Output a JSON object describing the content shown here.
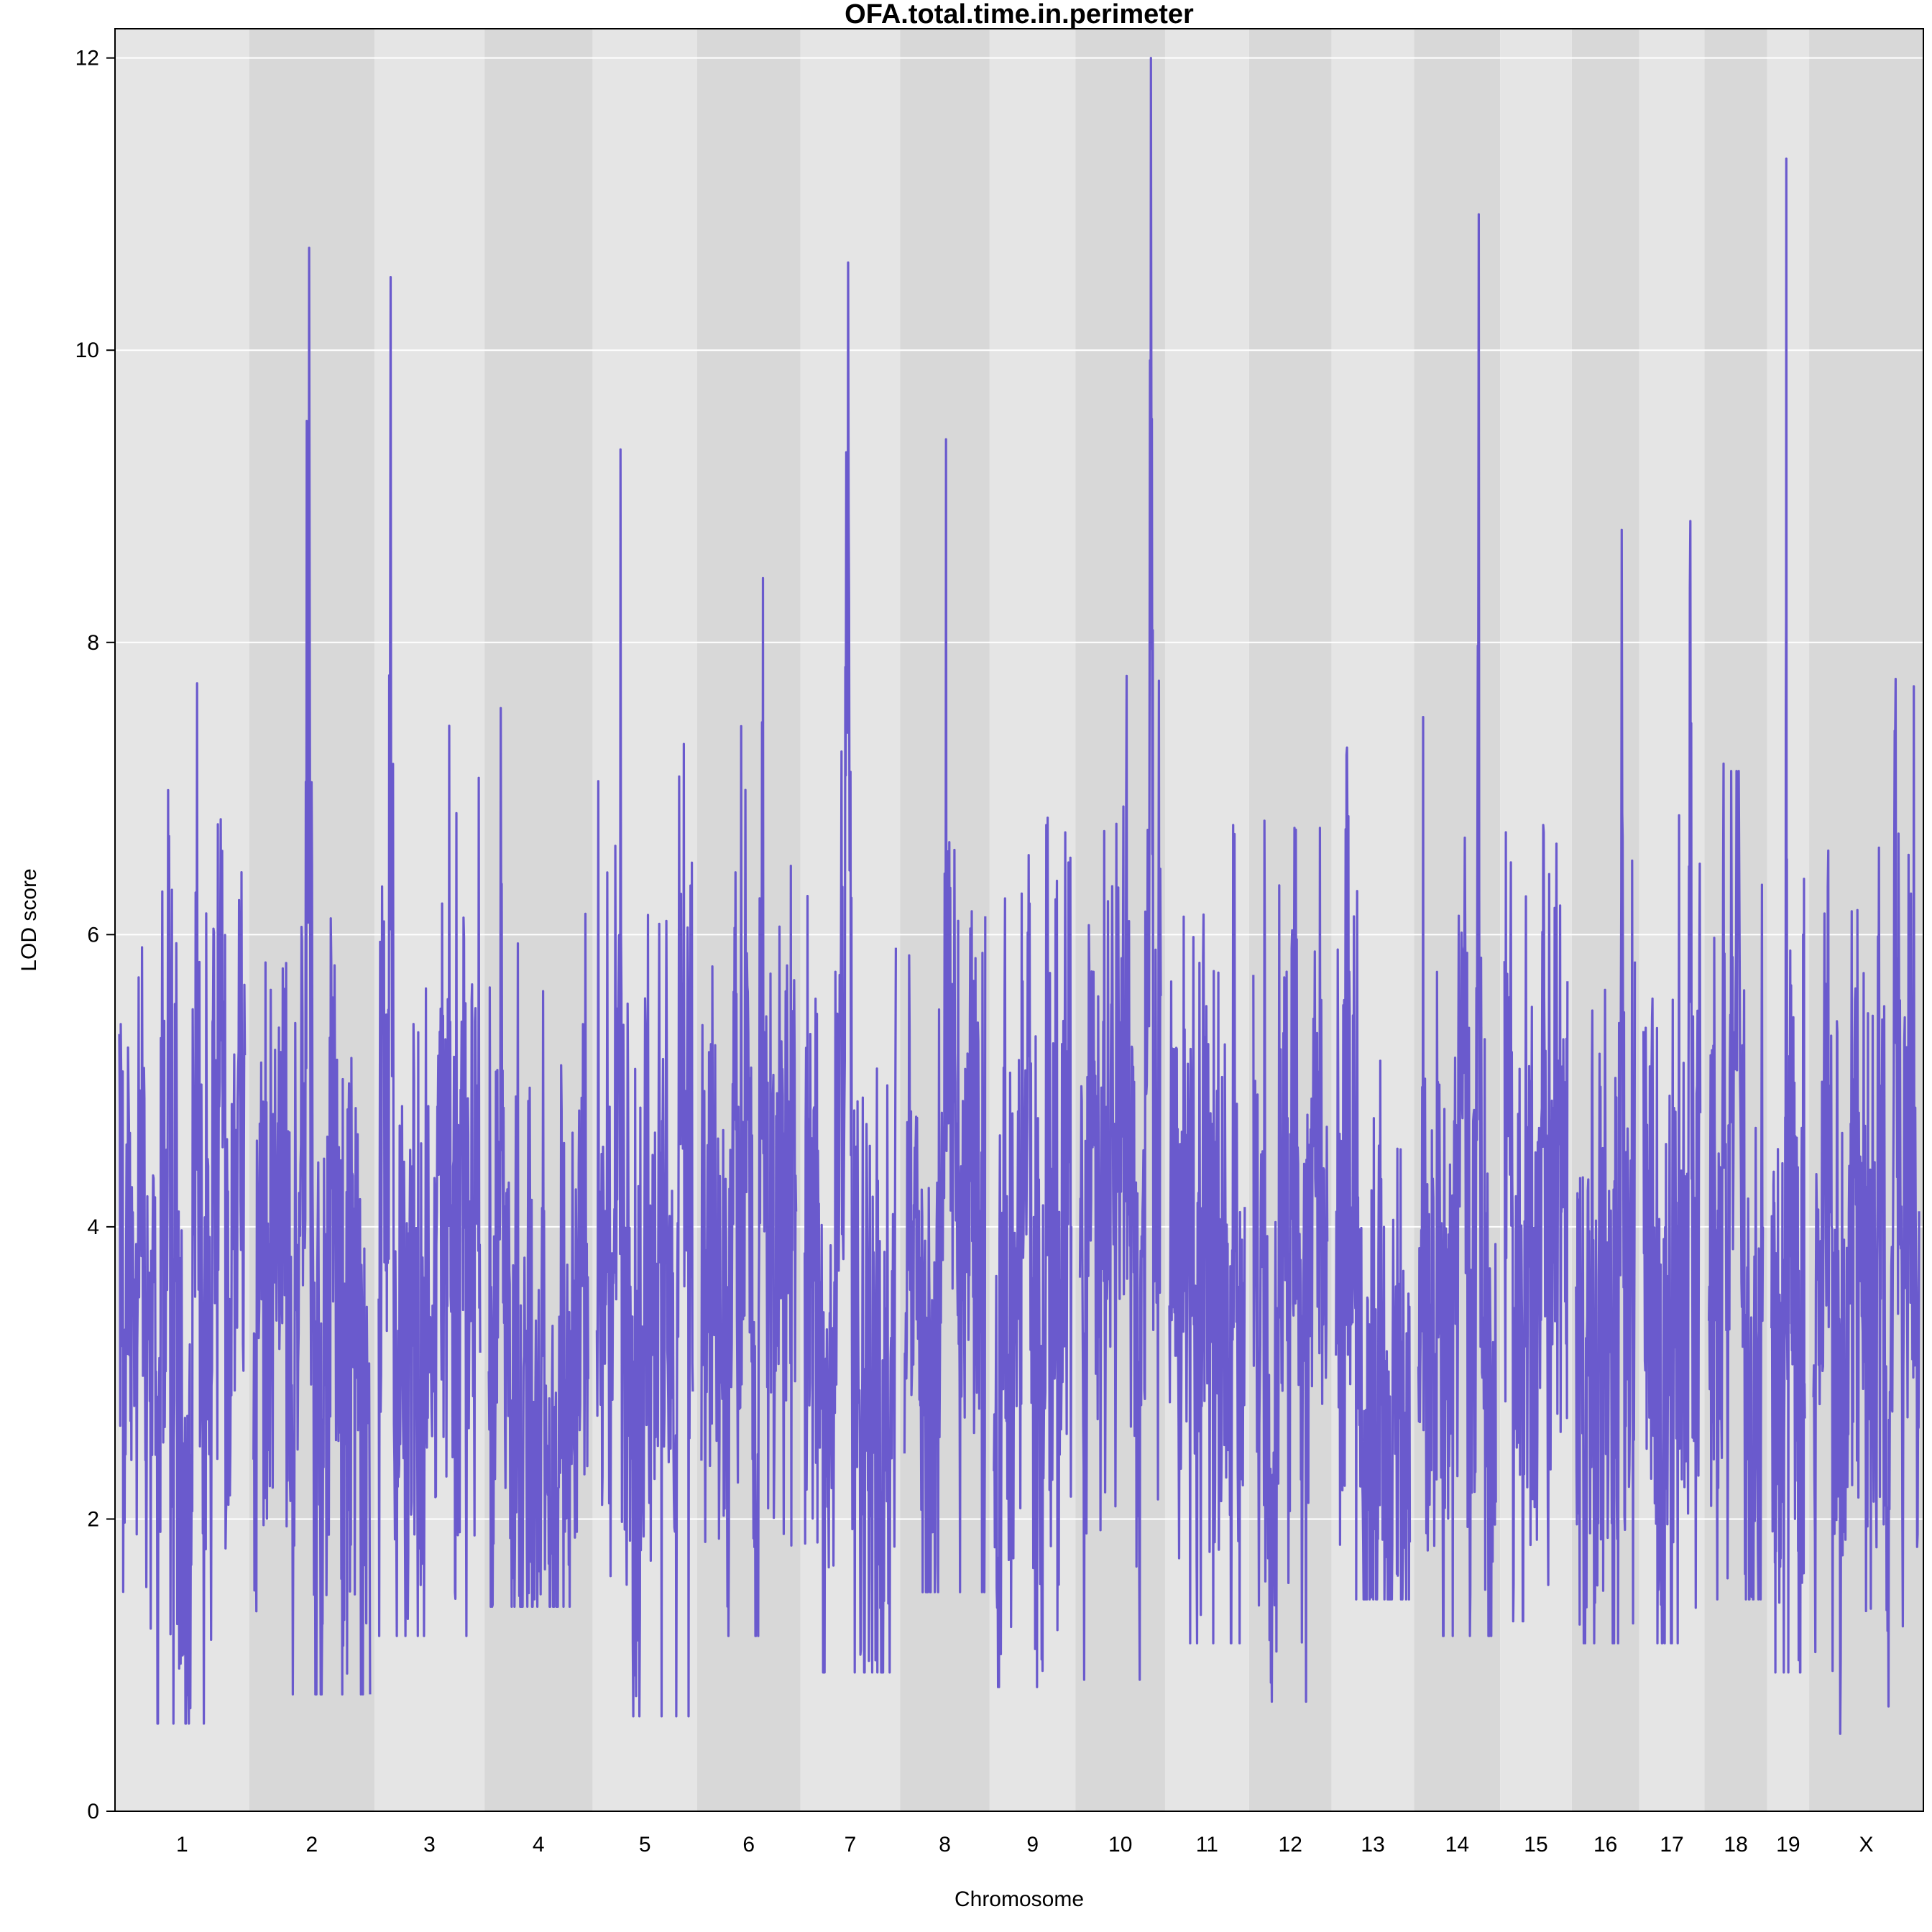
{
  "chart_data": {
    "type": "line",
    "title": "OFA.total.time.in.perimeter",
    "xlabel": "Chromosome",
    "ylabel": "LOD score",
    "ylim": [
      0,
      12.2
    ],
    "yticks": [
      0,
      2,
      4,
      6,
      8,
      10,
      12
    ],
    "grid": true,
    "line_color": "#6A5ACD",
    "band_colors": [
      "#E5E5E5",
      "#D8D8D8"
    ],
    "chromosomes": [
      {
        "name": "1",
        "length": 195,
        "peak": 7.72,
        "peak_pos": 0.62,
        "min": 0.6
      },
      {
        "name": "2",
        "length": 182,
        "peak": 10.7,
        "peak_pos": 0.48,
        "min": 0.8
      },
      {
        "name": "3",
        "length": 160,
        "peak": 10.5,
        "peak_pos": 0.12,
        "min": 1.2
      },
      {
        "name": "4",
        "length": 157,
        "peak": 7.55,
        "peak_pos": 0.12,
        "min": 1.4
      },
      {
        "name": "5",
        "length": 152,
        "peak": 9.32,
        "peak_pos": 0.25,
        "min": 0.65
      },
      {
        "name": "6",
        "length": 150,
        "peak": 8.44,
        "peak_pos": 0.65,
        "min": 1.2
      },
      {
        "name": "7",
        "length": 145,
        "peak": 10.6,
        "peak_pos": 0.48,
        "min": 0.95
      },
      {
        "name": "8",
        "length": 130,
        "peak": 9.39,
        "peak_pos": 0.52,
        "min": 1.5
      },
      {
        "name": "9",
        "length": 125,
        "peak": 6.8,
        "peak_pos": 0.7,
        "min": 0.85
      },
      {
        "name": "10",
        "length": 130,
        "peak": 12.0,
        "peak_pos": 0.88,
        "min": 0.9
      },
      {
        "name": "11",
        "length": 122,
        "peak": 6.75,
        "peak_pos": 0.85,
        "min": 1.15
      },
      {
        "name": "12",
        "length": 120,
        "peak": 6.78,
        "peak_pos": 0.15,
        "min": 0.75
      },
      {
        "name": "13",
        "length": 120,
        "peak": 7.28,
        "peak_pos": 0.15,
        "min": 1.45
      },
      {
        "name": "14",
        "length": 125,
        "peak": 10.93,
        "peak_pos": 0.78,
        "min": 1.2
      },
      {
        "name": "15",
        "length": 104,
        "peak": 6.75,
        "peak_pos": 0.62,
        "min": 1.3
      },
      {
        "name": "16",
        "length": 98,
        "peak": 8.77,
        "peak_pos": 0.78,
        "min": 1.15
      },
      {
        "name": "17",
        "length": 95,
        "peak": 8.83,
        "peak_pos": 0.83,
        "min": 1.15
      },
      {
        "name": "18",
        "length": 91,
        "peak": 7.17,
        "peak_pos": 0.28,
        "min": 1.45
      },
      {
        "name": "19",
        "length": 61,
        "peak": 11.31,
        "peak_pos": 0.45,
        "min": 0.95
      },
      {
        "name": "X",
        "length": 166,
        "peak": 7.75,
        "peak_pos": 0.78,
        "min": 0.53
      }
    ]
  }
}
